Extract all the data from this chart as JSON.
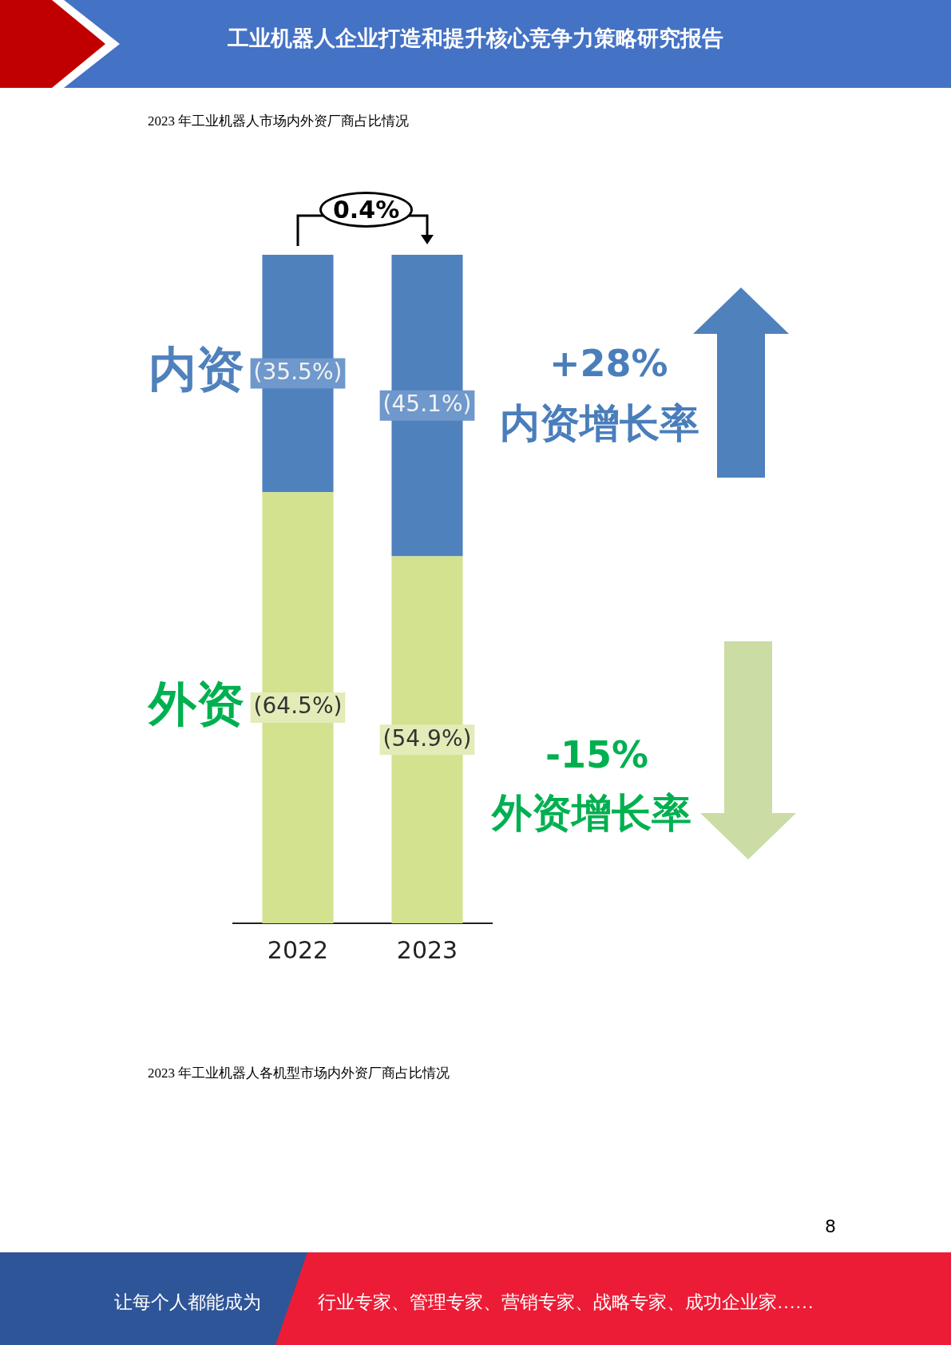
{
  "chart_data": {
    "type": "bar",
    "stacked": true,
    "title": "2023 年工业机器人市场内外资厂商占比情况",
    "categories": [
      "2022",
      "2023"
    ],
    "series": [
      {
        "name": "外资",
        "color": "#d2e28f",
        "values": [
          64.5,
          54.9
        ],
        "value_labels": [
          "(64.5%)",
          "(54.9%)"
        ]
      },
      {
        "name": "内资",
        "color": "#4f81bd",
        "values": [
          35.5,
          45.1
        ],
        "value_labels": [
          "(35.5%)",
          "(45.1%)"
        ]
      }
    ],
    "annotations": [
      "工业机器人企业打造和提升核心竞争力策略研究报告",
      "0.4%",
      "+28%",
      "内资增长率",
      "-15%",
      "外资增长率",
      "2023 年工业机器人各机型市场内外资厂商占比情况",
      "8",
      "让每个人都能成为",
      "行业专家、管理专家、营销专家、战略专家、成功企业家……"
    ]
  }
}
